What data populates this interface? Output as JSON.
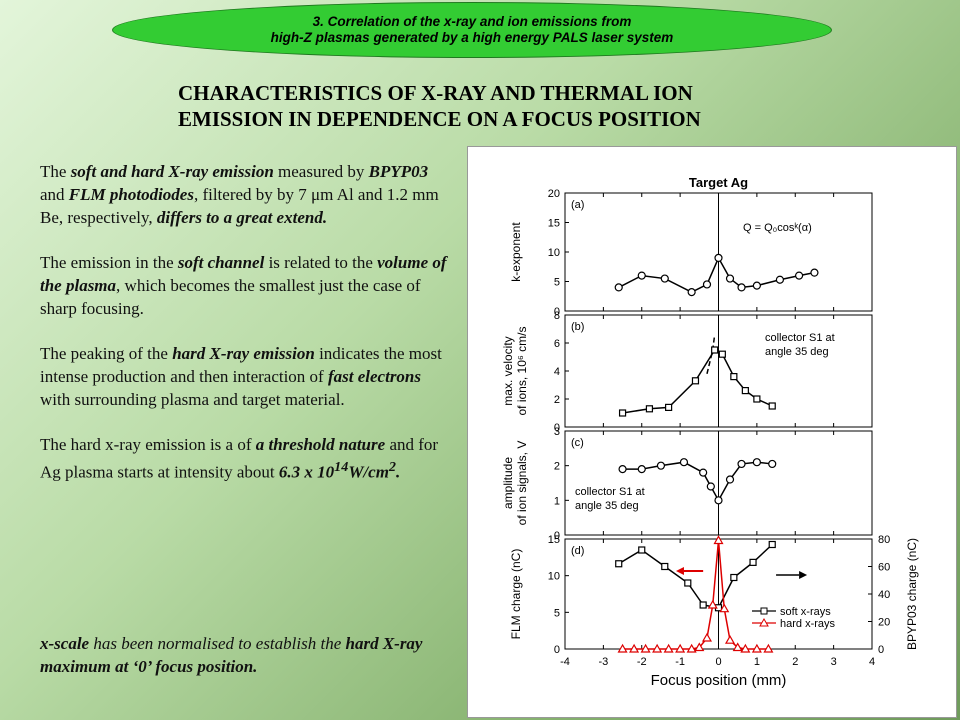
{
  "banner": {
    "line1": "3. Correlation of the x-ray and ion emissions from",
    "line2": "high-Z plasmas generated by a high energy PALS laser system"
  },
  "heading": {
    "line1": "CHARACTERISTICS OF X-RAY AND THERMAL ION",
    "line2": "EMISSION IN DEPENDENCE ON A FOCUS POSITION"
  },
  "paragraphs": {
    "p1": {
      "t1": "The ",
      "e1": "soft and hard X-ray emission",
      "t2": " measured by ",
      "e2": "BPYP03",
      "t3": " and ",
      "e3": "FLM photodiodes",
      "t4": ", filtered by by 7 μm Al and 1.2 mm Be, respectively, ",
      "e4": "differs to a great extend."
    },
    "p2": {
      "t1": "The emission in the ",
      "e1": "soft channel",
      "t2": " is related to the ",
      "e2": "volume of the plasma",
      "t3": ", which becomes the smallest just the case of sharp focusing."
    },
    "p3": {
      "t1": "The peaking of the ",
      "e1": "hard X-ray emission",
      "t2": " indicates the most intense production and then interaction of ",
      "e2": "fast electrons",
      "t3": " with surrounding plasma and target material."
    },
    "p4": {
      "t1": "The hard x-ray emission is a of ",
      "e1": "a threshold nature",
      "t2": " and for Ag plasma starts at intensity about ",
      "e2": "6.3 x 10",
      "sup": "14",
      "e3": "W/cm",
      "sup2": "2",
      "t3": "."
    },
    "note": {
      "e1": "x-scale",
      "t1": " has been normalised to establish the ",
      "e2": "hard X-ray maximum at ‘0’ focus position."
    }
  },
  "chart_data": {
    "type": "line",
    "title": "Target Ag",
    "xlabel": "Focus position (mm)",
    "xlim": [
      -4,
      4
    ],
    "x_ticks": [
      -4,
      -3,
      -2,
      -1,
      0,
      1,
      2,
      3,
      4
    ],
    "vline_x": 0,
    "panels": [
      {
        "label": "(a)",
        "ylabel": [
          "k-exponent"
        ],
        "ylim": [
          0,
          20
        ],
        "y_ticks": [
          0,
          5,
          10,
          15,
          20
        ],
        "annotation": "Q = Q₀cosᵏ(α)",
        "series": [
          {
            "name": "",
            "marker": "circle",
            "x": [
              -2.6,
              -2.0,
              -1.4,
              -0.7,
              -0.3,
              0.0,
              0.3,
              0.6,
              1.0,
              1.6,
              2.1,
              2.5
            ],
            "y": [
              4.0,
              6.0,
              5.5,
              3.2,
              4.5,
              9.0,
              5.5,
              4.0,
              4.3,
              5.3,
              6.0,
              6.5
            ]
          }
        ]
      },
      {
        "label": "(b)",
        "ylabel": [
          "max. velocity",
          "of ions, 10⁶ cm/s"
        ],
        "ylim": [
          0,
          8
        ],
        "y_ticks": [
          0,
          2,
          4,
          6,
          8
        ],
        "annotation_lines": [
          "collector S1 at",
          "angle 35 deg"
        ],
        "series": [
          {
            "name": "",
            "marker": "square",
            "x": [
              -2.5,
              -1.8,
              -1.3,
              -0.6,
              -0.1,
              0.1,
              0.4,
              0.7,
              1.0,
              1.4
            ],
            "y": [
              1.0,
              1.3,
              1.4,
              3.3,
              5.5,
              5.2,
              3.6,
              2.6,
              2.0,
              1.5
            ]
          }
        ],
        "dashed": {
          "x": [
            -0.3,
            -0.15,
            -0.1
          ],
          "y": [
            3.8,
            5.5,
            6.6
          ]
        }
      },
      {
        "label": "(c)",
        "ylabel": [
          "amplitude",
          "of ion signals, V"
        ],
        "ylim": [
          0,
          3
        ],
        "y_ticks": [
          0,
          1,
          2,
          3
        ],
        "annotation_lines": [
          "collector S1 at",
          "angle 35 deg"
        ],
        "series": [
          {
            "name": "",
            "marker": "circle",
            "x": [
              -2.5,
              -2.0,
              -1.5,
              -0.9,
              -0.4,
              -0.2,
              0.0,
              0.3,
              0.6,
              1.0,
              1.4
            ],
            "y": [
              1.9,
              1.9,
              2.0,
              2.1,
              1.8,
              1.4,
              1.0,
              1.6,
              2.05,
              2.1,
              2.05
            ]
          }
        ]
      },
      {
        "label": "(d)",
        "ylabel": [
          "FLM charge (nC)"
        ],
        "ylim": [
          0,
          15
        ],
        "y_ticks": [
          0,
          5,
          10,
          15
        ],
        "y2label": "BPYP03 charge (nC)",
        "y2lim": [
          0,
          80
        ],
        "y2_ticks": [
          0,
          20,
          40,
          60,
          80
        ],
        "series": [
          {
            "name": "soft x-rays",
            "marker": "square",
            "color": "#000000",
            "axis": "right",
            "x": [
              -2.6,
              -2.0,
              -1.4,
              -0.8,
              -0.4,
              0.0,
              0.4,
              0.9,
              1.4
            ],
            "y": [
              62,
              72,
              60,
              48,
              32,
              30,
              52,
              63,
              76
            ]
          },
          {
            "name": "hard x-rays",
            "marker": "triangle",
            "color": "#dd0000",
            "axis": "left",
            "x": [
              -2.5,
              -2.2,
              -1.9,
              -1.6,
              -1.3,
              -1.0,
              -0.7,
              -0.5,
              -0.3,
              -0.15,
              0.0,
              0.15,
              0.3,
              0.5,
              0.7,
              1.0,
              1.3
            ],
            "y": [
              0,
              0,
              0,
              0,
              0,
              0,
              0,
              0.2,
              1.5,
              6.0,
              14.8,
              5.5,
              1.2,
              0.2,
              0,
              0,
              0
            ]
          }
        ]
      }
    ]
  }
}
